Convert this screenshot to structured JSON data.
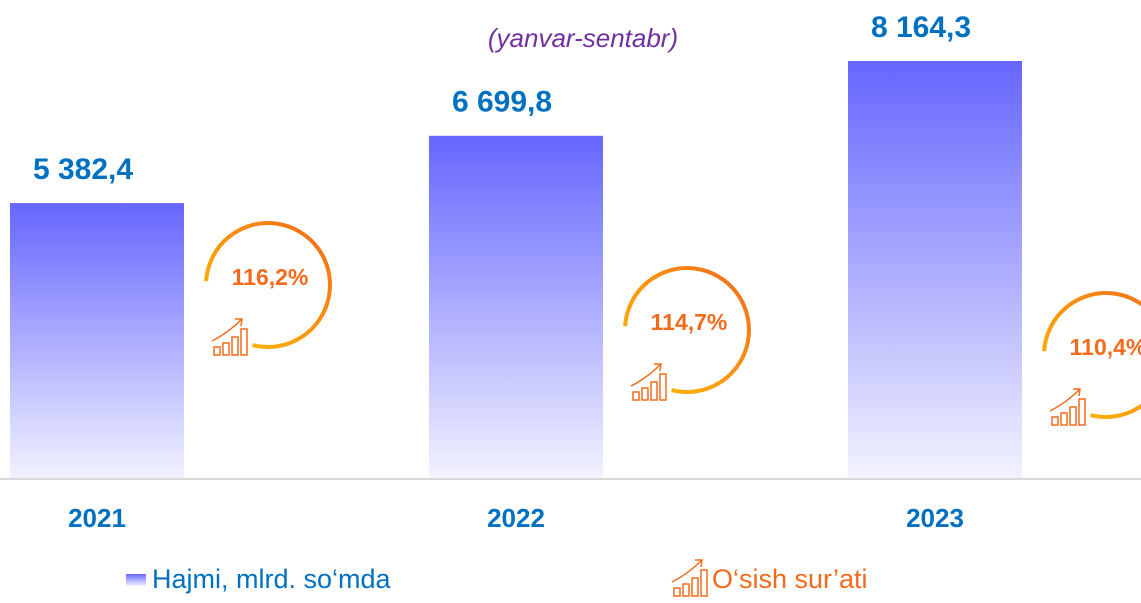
{
  "chart_data": {
    "type": "bar",
    "subtitle": "(yanvar-sentabr)",
    "categories": [
      "2021",
      "2022",
      "2023"
    ],
    "series": [
      {
        "name": "Hajmi, mlrd. so‘mda",
        "color": "#6666ff",
        "values": [
          5382.4,
          6699.8,
          8164.3
        ],
        "value_labels": [
          "5 382,4",
          "6 699,8",
          "8 164,3"
        ]
      },
      {
        "name": "O‘sish sur’ati",
        "color": "#f26b1d",
        "values": [
          116.2,
          114.7,
          110.4
        ],
        "value_labels": [
          "116,2%",
          "114,7%",
          "110,4%"
        ]
      }
    ]
  }
}
